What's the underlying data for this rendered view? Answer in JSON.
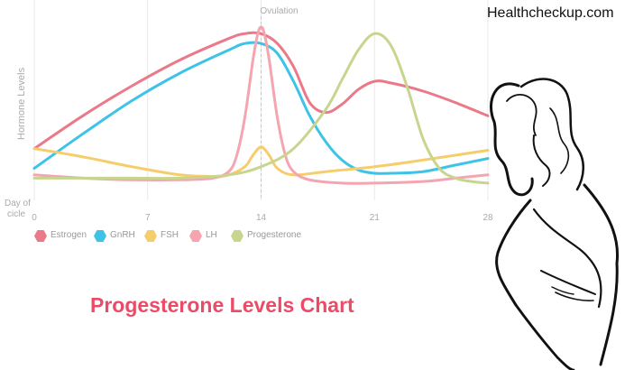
{
  "brand": "Healthcheckup.com",
  "page_title": "Progesterone Levels Chart",
  "colors": {
    "title": "#ea4c68",
    "gridline": "#e9e9e9",
    "axis_text": "#aaaaaa"
  },
  "chart_data": {
    "type": "line",
    "title": "",
    "xlabel": "Day of cicle",
    "ylabel": "Hormone Levels",
    "xlim": [
      0,
      28
    ],
    "ylim": [
      0,
      100
    ],
    "x_ticks": [
      "0",
      "7",
      "14",
      "21",
      "28"
    ],
    "grid": "vertical",
    "legend_position": "bottom-left",
    "annotations": [
      {
        "text": "Ovulation",
        "x": 14
      }
    ],
    "series": [
      {
        "name": "Estrogen",
        "color": "#ea7a8a",
        "x": [
          0,
          3,
          6,
          9,
          12,
          13,
          14,
          15,
          16,
          17,
          18,
          19,
          20,
          21,
          22,
          24,
          26,
          28
        ],
        "y": [
          26,
          46,
          64,
          80,
          93,
          96,
          96,
          90,
          76,
          54,
          48,
          53,
          62,
          67,
          66,
          61,
          54,
          46
        ]
      },
      {
        "name": "GnRH",
        "color": "#3ec3e8",
        "x": [
          0,
          3,
          6,
          9,
          12,
          13,
          14,
          15,
          16,
          17,
          18,
          19,
          20,
          21,
          22,
          24,
          26,
          28
        ],
        "y": [
          14,
          35,
          55,
          72,
          86,
          90,
          90,
          84,
          67,
          46,
          30,
          19,
          13,
          11,
          11,
          12,
          16,
          20
        ]
      },
      {
        "name": "FSH",
        "color": "#f6cd6b",
        "x": [
          0,
          3,
          6,
          9,
          11,
          12,
          13,
          13.5,
          14,
          14.5,
          15,
          16,
          18,
          21,
          24,
          28
        ],
        "y": [
          26,
          21,
          15,
          10,
          9,
          10,
          15,
          22,
          27,
          22,
          14,
          10,
          12,
          15,
          19,
          25
        ]
      },
      {
        "name": "LH",
        "color": "#f5a5b0",
        "x": [
          0,
          3,
          6,
          9,
          11,
          12,
          12.5,
          13,
          13.5,
          13.8,
          14,
          14.2,
          14.5,
          15,
          15.5,
          16,
          17,
          19,
          21,
          24,
          26,
          28
        ],
        "y": [
          10,
          8,
          7,
          7,
          8,
          12,
          22,
          45,
          80,
          96,
          100,
          96,
          80,
          45,
          22,
          12,
          7,
          5,
          5,
          6,
          8,
          10
        ]
      },
      {
        "name": "Progesterone",
        "color": "#c7d58e",
        "x": [
          0,
          3,
          6,
          9,
          12,
          14,
          16,
          18,
          19,
          20,
          21,
          22,
          23,
          24,
          25,
          26,
          27,
          28
        ],
        "y": [
          8,
          8,
          8,
          8,
          10,
          15,
          26,
          50,
          68,
          86,
          96,
          89,
          64,
          32,
          14,
          8,
          6,
          5
        ]
      }
    ]
  }
}
